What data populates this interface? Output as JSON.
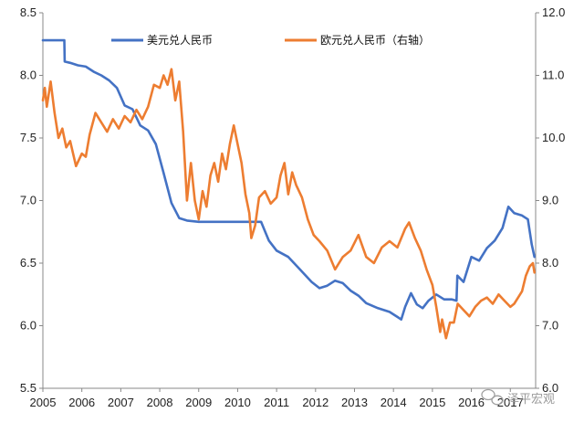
{
  "chart_data": {
    "type": "line",
    "title": "",
    "xlabel": "",
    "ylabel": "",
    "x_ticks": [
      "2005",
      "2006",
      "2007",
      "2008",
      "2009",
      "2010",
      "2011",
      "2012",
      "2013",
      "2014",
      "2015",
      "2016",
      "2017"
    ],
    "x_range": [
      2005.0,
      2017.65
    ],
    "y_left": {
      "range": [
        5.5,
        8.5
      ],
      "ticks": [
        "5.5",
        "6.0",
        "6.5",
        "7.0",
        "7.5",
        "8.0",
        "8.5"
      ]
    },
    "y_right": {
      "range": [
        6.0,
        12.0
      ],
      "ticks": [
        "6.0",
        "7.0",
        "8.0",
        "9.0",
        "10.0",
        "11.0",
        "12.0"
      ]
    },
    "legend_position": "top",
    "grid": false,
    "series": [
      {
        "name": "美元兑人民币",
        "axis": "left",
        "color": "#4472c4",
        "points": [
          [
            2005.0,
            8.28
          ],
          [
            2005.55,
            8.28
          ],
          [
            2005.56,
            8.11
          ],
          [
            2005.7,
            8.1
          ],
          [
            2005.9,
            8.08
          ],
          [
            2006.1,
            8.07
          ],
          [
            2006.3,
            8.03
          ],
          [
            2006.5,
            8.0
          ],
          [
            2006.7,
            7.96
          ],
          [
            2006.9,
            7.9
          ],
          [
            2007.1,
            7.76
          ],
          [
            2007.3,
            7.73
          ],
          [
            2007.5,
            7.6
          ],
          [
            2007.7,
            7.56
          ],
          [
            2007.9,
            7.45
          ],
          [
            2008.1,
            7.22
          ],
          [
            2008.3,
            6.98
          ],
          [
            2008.5,
            6.86
          ],
          [
            2008.7,
            6.84
          ],
          [
            2009.0,
            6.83
          ],
          [
            2009.5,
            6.83
          ],
          [
            2010.0,
            6.83
          ],
          [
            2010.4,
            6.83
          ],
          [
            2010.6,
            6.83
          ],
          [
            2010.8,
            6.68
          ],
          [
            2011.0,
            6.6
          ],
          [
            2011.3,
            6.55
          ],
          [
            2011.6,
            6.45
          ],
          [
            2011.9,
            6.35
          ],
          [
            2012.1,
            6.3
          ],
          [
            2012.3,
            6.32
          ],
          [
            2012.5,
            6.36
          ],
          [
            2012.7,
            6.34
          ],
          [
            2012.9,
            6.28
          ],
          [
            2013.1,
            6.24
          ],
          [
            2013.3,
            6.18
          ],
          [
            2013.6,
            6.14
          ],
          [
            2013.9,
            6.11
          ],
          [
            2014.1,
            6.07
          ],
          [
            2014.2,
            6.05
          ],
          [
            2014.3,
            6.15
          ],
          [
            2014.45,
            6.26
          ],
          [
            2014.6,
            6.17
          ],
          [
            2014.75,
            6.14
          ],
          [
            2014.9,
            6.2
          ],
          [
            2015.1,
            6.25
          ],
          [
            2015.3,
            6.21
          ],
          [
            2015.5,
            6.21
          ],
          [
            2015.62,
            6.2
          ],
          [
            2015.64,
            6.4
          ],
          [
            2015.8,
            6.35
          ],
          [
            2016.0,
            6.55
          ],
          [
            2016.2,
            6.52
          ],
          [
            2016.4,
            6.62
          ],
          [
            2016.6,
            6.68
          ],
          [
            2016.8,
            6.78
          ],
          [
            2016.95,
            6.95
          ],
          [
            2017.1,
            6.9
          ],
          [
            2017.3,
            6.88
          ],
          [
            2017.45,
            6.85
          ],
          [
            2017.55,
            6.65
          ],
          [
            2017.62,
            6.55
          ]
        ]
      },
      {
        "name": "欧元兑人民币（右轴）",
        "axis": "right",
        "color": "#ed7d31",
        "points": [
          [
            2005.0,
            10.6
          ],
          [
            2005.05,
            10.8
          ],
          [
            2005.1,
            10.5
          ],
          [
            2005.2,
            10.9
          ],
          [
            2005.3,
            10.4
          ],
          [
            2005.4,
            10.0
          ],
          [
            2005.5,
            10.15
          ],
          [
            2005.6,
            9.85
          ],
          [
            2005.7,
            9.95
          ],
          [
            2005.85,
            9.55
          ],
          [
            2006.0,
            9.75
          ],
          [
            2006.1,
            9.7
          ],
          [
            2006.2,
            10.05
          ],
          [
            2006.35,
            10.4
          ],
          [
            2006.5,
            10.25
          ],
          [
            2006.65,
            10.1
          ],
          [
            2006.8,
            10.3
          ],
          [
            2006.95,
            10.15
          ],
          [
            2007.1,
            10.35
          ],
          [
            2007.25,
            10.25
          ],
          [
            2007.4,
            10.45
          ],
          [
            2007.55,
            10.3
          ],
          [
            2007.7,
            10.5
          ],
          [
            2007.85,
            10.85
          ],
          [
            2008.0,
            10.8
          ],
          [
            2008.1,
            11.0
          ],
          [
            2008.2,
            10.85
          ],
          [
            2008.3,
            11.1
          ],
          [
            2008.4,
            10.6
          ],
          [
            2008.5,
            10.9
          ],
          [
            2008.6,
            10.1
          ],
          [
            2008.7,
            9.0
          ],
          [
            2008.8,
            9.6
          ],
          [
            2008.9,
            9.0
          ],
          [
            2009.0,
            8.7
          ],
          [
            2009.1,
            9.15
          ],
          [
            2009.2,
            8.9
          ],
          [
            2009.3,
            9.4
          ],
          [
            2009.4,
            9.6
          ],
          [
            2009.5,
            9.3
          ],
          [
            2009.6,
            9.75
          ],
          [
            2009.7,
            9.5
          ],
          [
            2009.8,
            9.9
          ],
          [
            2009.9,
            10.2
          ],
          [
            2010.0,
            9.9
          ],
          [
            2010.1,
            9.6
          ],
          [
            2010.2,
            9.1
          ],
          [
            2010.3,
            8.8
          ],
          [
            2010.35,
            8.4
          ],
          [
            2010.45,
            8.6
          ],
          [
            2010.55,
            9.05
          ],
          [
            2010.7,
            9.15
          ],
          [
            2010.85,
            8.95
          ],
          [
            2011.0,
            9.05
          ],
          [
            2011.1,
            9.4
          ],
          [
            2011.2,
            9.6
          ],
          [
            2011.3,
            9.1
          ],
          [
            2011.4,
            9.45
          ],
          [
            2011.5,
            9.25
          ],
          [
            2011.65,
            9.05
          ],
          [
            2011.8,
            8.7
          ],
          [
            2011.95,
            8.45
          ],
          [
            2012.1,
            8.35
          ],
          [
            2012.3,
            8.2
          ],
          [
            2012.5,
            7.9
          ],
          [
            2012.7,
            8.1
          ],
          [
            2012.9,
            8.2
          ],
          [
            2013.1,
            8.45
          ],
          [
            2013.3,
            8.1
          ],
          [
            2013.5,
            8.0
          ],
          [
            2013.7,
            8.25
          ],
          [
            2013.9,
            8.35
          ],
          [
            2014.1,
            8.25
          ],
          [
            2014.3,
            8.55
          ],
          [
            2014.4,
            8.65
          ],
          [
            2014.55,
            8.4
          ],
          [
            2014.7,
            8.2
          ],
          [
            2014.85,
            7.9
          ],
          [
            2015.0,
            7.65
          ],
          [
            2015.1,
            7.3
          ],
          [
            2015.2,
            6.9
          ],
          [
            2015.25,
            7.1
          ],
          [
            2015.35,
            6.8
          ],
          [
            2015.45,
            7.05
          ],
          [
            2015.55,
            7.05
          ],
          [
            2015.65,
            7.35
          ],
          [
            2015.8,
            7.25
          ],
          [
            2015.95,
            7.15
          ],
          [
            2016.1,
            7.3
          ],
          [
            2016.25,
            7.4
          ],
          [
            2016.4,
            7.45
          ],
          [
            2016.55,
            7.35
          ],
          [
            2016.7,
            7.5
          ],
          [
            2016.85,
            7.4
          ],
          [
            2017.0,
            7.3
          ],
          [
            2017.1,
            7.35
          ],
          [
            2017.2,
            7.45
          ],
          [
            2017.3,
            7.55
          ],
          [
            2017.4,
            7.8
          ],
          [
            2017.5,
            7.95
          ],
          [
            2017.58,
            8.0
          ],
          [
            2017.62,
            7.85
          ]
        ]
      }
    ]
  },
  "watermark": {
    "text": "泽平宏观",
    "icon": "chat-bubbles-icon"
  }
}
